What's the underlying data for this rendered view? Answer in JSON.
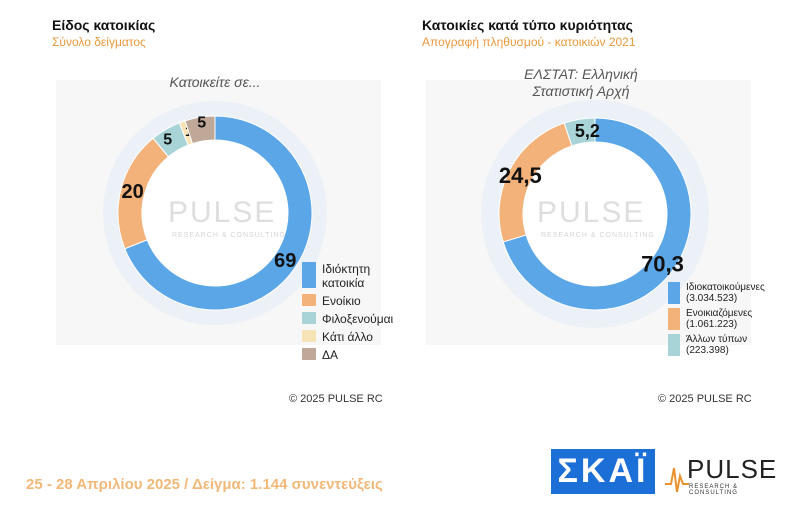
{
  "left": {
    "title": "Είδος κατοικίας",
    "subtitle": "Σύνολο δείγματος",
    "overlay": "Κατοικείτε σε...",
    "credit": "©  2025  PULSE RC"
  },
  "right": {
    "title": "Κατοικίες κατά τύπο κυριότητας",
    "subtitle": "Απογραφή πληθυσμού - κατοικιών 2021",
    "overlay": "ΕΛΣΤΑΤ: Ελληνική Στατιστική Αρχή",
    "credit": "©  2025  PULSE RC"
  },
  "watermark": {
    "word": "PULSE",
    "sub": "RESEARCH & CONSULTING"
  },
  "footer": {
    "text": "25 - 28 Απριλίου 2025  /  Δείγμα:  1.144 συνεντεύξεις"
  },
  "logos": {
    "skai": "ΣΚΑΪ",
    "pulse": "PULSE",
    "pulse_sub": "RESEARCH & CONSULTING"
  },
  "chart_data": [
    {
      "type": "pie",
      "title": "Είδος κατοικίας",
      "subtitle": "Σύνολο δείγματος",
      "categories": [
        "Ιδιόκτητη κατοικία",
        "Ενοίκιο",
        "Φιλοξενούμαι",
        "Κάτι άλλο",
        "ΔΑ"
      ],
      "values": [
        69,
        20,
        5,
        1,
        5
      ],
      "labels": [
        "69",
        "20",
        "5",
        "1",
        "5"
      ],
      "colors": [
        "#5aa6e6",
        "#f2b27a",
        "#a8d4d8",
        "#f6e3b6",
        "#bfa898"
      ],
      "legend_position": "right"
    },
    {
      "type": "pie",
      "title": "Κατοικίες κατά τύπο κυριότητας",
      "subtitle": "Απογραφή πληθυσμού - κατοικιών 2021",
      "categories": [
        "Ιδιοκατοικούμενες (3.034.523)",
        "Ενοικιαζόμενες (1.061.223)",
        "Άλλων τύπων (223.398)"
      ],
      "values": [
        70.3,
        24.5,
        5.2
      ],
      "labels": [
        "70,3",
        "24,5",
        "5,2"
      ],
      "colors": [
        "#5aa6e6",
        "#f2b27a",
        "#a8d4d8"
      ],
      "legend_position": "bottom-right"
    }
  ]
}
